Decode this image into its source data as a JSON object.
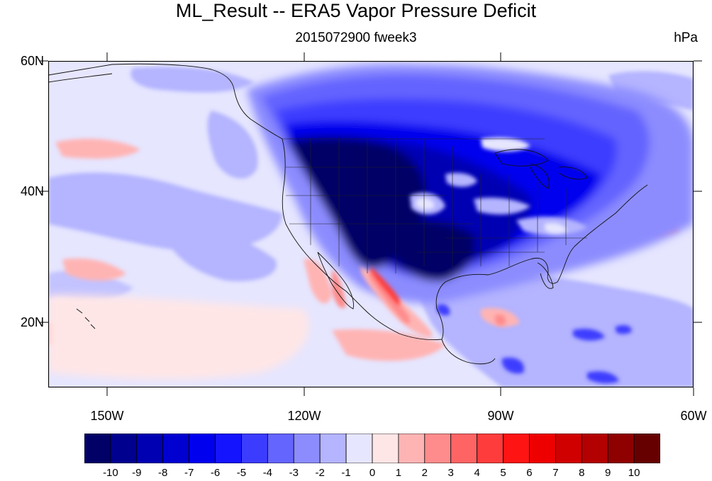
{
  "figure": {
    "title": "ML_Result -- ERA5 Vapor Pressure Deficit",
    "subtitle": "2015072900 fweek3",
    "units": "hPa"
  },
  "map": {
    "projection": "cylindrical-equidistant",
    "lon_range": [
      -160,
      -62
    ],
    "lat_range": [
      10,
      60
    ],
    "lat_labels": [
      "60N",
      "40N",
      "20N"
    ],
    "lon_labels": [
      "150W",
      "120W",
      "90W",
      "60W"
    ],
    "features": [
      "coastlines",
      "us-state-borders",
      "country-borders"
    ]
  },
  "colorbar": {
    "labels": [
      "-10",
      "-9",
      "-8",
      "-7",
      "-6",
      "-5",
      "-4",
      "-3",
      "-2",
      "-1",
      "0",
      "1",
      "2",
      "3",
      "4",
      "5",
      "6",
      "7",
      "8",
      "9",
      "10"
    ],
    "colors": [
      "#000066",
      "#00008f",
      "#0000b3",
      "#0000d1",
      "#0000ee",
      "#1414ff",
      "#3c3cff",
      "#6464ff",
      "#8c8cff",
      "#b4b4ff",
      "#e6e6ff",
      "#ffe6e6",
      "#ffb4b4",
      "#ff8c8c",
      "#ff6464",
      "#ff3c3c",
      "#ff1414",
      "#ee0000",
      "#d10000",
      "#b30000",
      "#8f0000",
      "#660000"
    ]
  }
}
